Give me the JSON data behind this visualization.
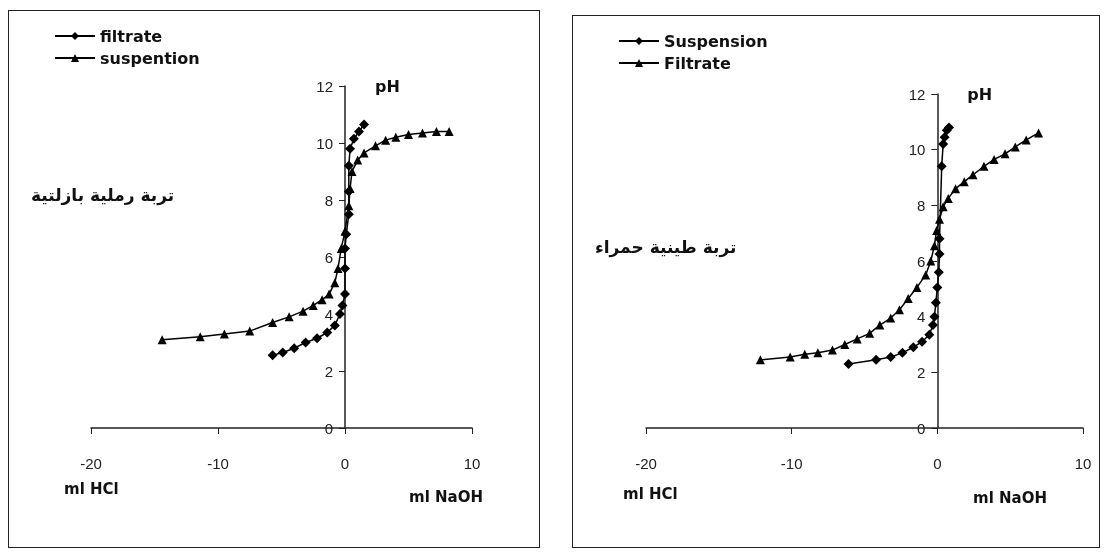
{
  "chart_data": [
    {
      "type": "line",
      "xlabel": "ml NaOH",
      "ylabel": "pH",
      "annotations": [
        "ml HCl",
        "تربة رملية بازلتية"
      ],
      "xlim": [
        -20,
        10
      ],
      "xticks": [
        -20,
        -10,
        0,
        10
      ],
      "ylim": [
        0,
        12
      ],
      "yticks": [
        0,
        2,
        4,
        6,
        8,
        10,
        12
      ],
      "legend": "top left",
      "line_style": "solid",
      "series": [
        {
          "name": "filtrate",
          "color": "#000000",
          "marker": "diamond",
          "x": [
            -5.7,
            -4.9,
            -4.0,
            -3.1,
            -2.2,
            -1.4,
            -0.8,
            -0.4,
            -0.2,
            0,
            0,
            0,
            0.1,
            0.3,
            0.3,
            0.3,
            0.4,
            0.7,
            1.1,
            1.5
          ],
          "values": [
            2.55,
            2.65,
            2.8,
            3.0,
            3.15,
            3.35,
            3.6,
            4.0,
            4.3,
            4.7,
            5.6,
            6.3,
            6.8,
            7.5,
            8.3,
            9.2,
            9.8,
            10.15,
            10.4,
            10.65
          ]
        },
        {
          "name": "suspention",
          "color": "#000000",
          "marker": "triangle",
          "x": [
            -14.4,
            -11.4,
            -9.5,
            -7.5,
            -5.7,
            -4.4,
            -3.3,
            -2.5,
            -1.8,
            -1.25,
            -0.8,
            -0.55,
            -0.3,
            0,
            0.3,
            0.4,
            0.55,
            1.0,
            1.5,
            2.4,
            3.2,
            4.0,
            5.0,
            6.1,
            7.2,
            8.2
          ],
          "values": [
            3.1,
            3.2,
            3.3,
            3.4,
            3.7,
            3.9,
            4.1,
            4.3,
            4.5,
            4.7,
            5.1,
            5.6,
            6.3,
            6.9,
            7.8,
            8.4,
            9.0,
            9.4,
            9.65,
            9.9,
            10.1,
            10.2,
            10.3,
            10.35,
            10.4,
            10.4
          ]
        }
      ]
    },
    {
      "type": "line",
      "xlabel": "ml NaOH",
      "ylabel": "pH",
      "annotations": [
        "ml HCl",
        "تربة طينية حمراء"
      ],
      "xlim": [
        -20,
        10
      ],
      "xticks": [
        -20,
        -10,
        0,
        10
      ],
      "ylim": [
        0,
        12
      ],
      "yticks": [
        0,
        2,
        4,
        6,
        8,
        10,
        12
      ],
      "legend": "top left",
      "line_style": "solid",
      "series": [
        {
          "name": "Suspension",
          "color": "#000000",
          "marker": "diamond",
          "x": [
            -6.1,
            -4.2,
            -3.2,
            -2.4,
            -1.65,
            -1.05,
            -0.55,
            -0.3,
            -0.2,
            -0.1,
            0,
            0.1,
            0.15,
            0.15,
            0.3,
            0.4,
            0.5,
            0.65,
            0.8
          ],
          "values": [
            2.3,
            2.45,
            2.55,
            2.7,
            2.9,
            3.1,
            3.35,
            3.7,
            4.0,
            4.5,
            5.05,
            5.6,
            6.25,
            6.8,
            9.4,
            10.2,
            10.45,
            10.7,
            10.8
          ]
        },
        {
          "name": "Filtrate",
          "color": "#000000",
          "marker": "triangle",
          "x": [
            -12.15,
            -10.1,
            -9.1,
            -8.2,
            -7.2,
            -6.35,
            -5.5,
            -4.65,
            -3.95,
            -3.2,
            -2.6,
            -2.0,
            -1.4,
            -0.8,
            -0.45,
            -0.2,
            -0.05,
            0.15,
            0.4,
            0.75,
            1.25,
            1.85,
            2.45,
            3.2,
            3.9,
            4.65,
            5.35,
            6.1,
            6.95
          ],
          "values": [
            2.45,
            2.55,
            2.65,
            2.7,
            2.8,
            3.0,
            3.2,
            3.4,
            3.7,
            3.95,
            4.25,
            4.65,
            5.05,
            5.5,
            6.0,
            6.55,
            7.1,
            7.5,
            7.95,
            8.25,
            8.6,
            8.85,
            9.1,
            9.4,
            9.65,
            9.85,
            10.1,
            10.35,
            10.6
          ]
        }
      ]
    }
  ]
}
